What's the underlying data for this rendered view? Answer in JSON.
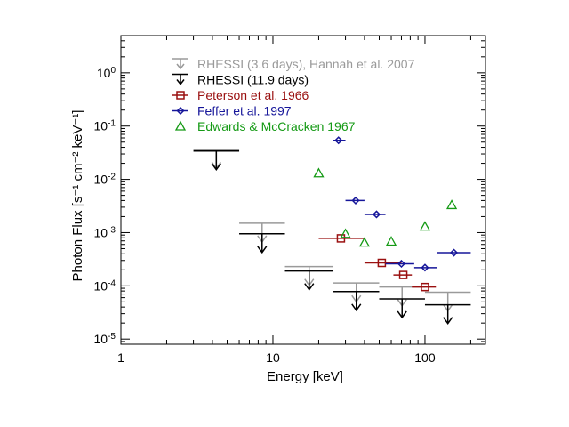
{
  "chart_data": {
    "type": "scatter",
    "xlabel": "Energy [keV]",
    "ylabel": "Photon Flux [s⁻¹ cm⁻² keV⁻¹]",
    "xscale": "log",
    "yscale": "log",
    "xlim": [
      1,
      250
    ],
    "ylim": [
      8e-06,
      5
    ],
    "xticks": [
      {
        "value": 1,
        "label": "1"
      },
      {
        "value": 10,
        "label": "10"
      },
      {
        "value": 100,
        "label": "100"
      }
    ],
    "yticks": [
      {
        "value": 1e-05,
        "base": "10",
        "exp": "-5"
      },
      {
        "value": 0.0001,
        "base": "10",
        "exp": "-4"
      },
      {
        "value": 0.001,
        "base": "10",
        "exp": "-3"
      },
      {
        "value": 0.01,
        "base": "10",
        "exp": "-2"
      },
      {
        "value": 0.1,
        "base": "10",
        "exp": "-1"
      },
      {
        "value": 1,
        "base": "10",
        "exp": "0"
      }
    ],
    "legend_position": "top-right",
    "series": [
      {
        "name": "RHESSI (3.6 days), Hannah et al. 2007",
        "marker": "upper-limit",
        "color": "#9a9a9a",
        "points": [
          {
            "x0": 3,
            "x1": 6,
            "y": 0.036
          },
          {
            "x0": 6,
            "x1": 12,
            "y": 0.0015
          },
          {
            "x0": 12,
            "x1": 25,
            "y": 0.00023
          },
          {
            "x0": 25,
            "x1": 50,
            "y": 0.000113
          },
          {
            "x0": 50,
            "x1": 100,
            "y": 9.5e-05
          },
          {
            "x0": 100,
            "x1": 200,
            "y": 7.6e-05
          }
        ]
      },
      {
        "name": "RHESSI (11.9 days)",
        "marker": "upper-limit",
        "color": "#000000",
        "points": [
          {
            "x0": 3,
            "x1": 6,
            "y": 0.034
          },
          {
            "x0": 6,
            "x1": 12,
            "y": 0.00095
          },
          {
            "x0": 12,
            "x1": 25,
            "y": 0.00019
          },
          {
            "x0": 25,
            "x1": 50,
            "y": 7.8e-05
          },
          {
            "x0": 50,
            "x1": 100,
            "y": 5.7e-05
          },
          {
            "x0": 100,
            "x1": 200,
            "y": 4.4e-05
          }
        ]
      },
      {
        "name": "Peterson et al. 1966",
        "marker": "square",
        "color": "#9a1010",
        "points": [
          {
            "x": 28,
            "x0": 20,
            "x1": 40,
            "y": 0.00078
          },
          {
            "x": 52,
            "x0": 40,
            "x1": 70,
            "y": 0.00027
          },
          {
            "x": 72,
            "x0": 62,
            "x1": 82,
            "y": 0.00016
          },
          {
            "x": 100,
            "x0": 82,
            "x1": 118,
            "y": 9.5e-05
          }
        ]
      },
      {
        "name": "Feffer et al. 1997",
        "marker": "diamond",
        "color": "#16169a",
        "points": [
          {
            "x": 27,
            "x0": 25,
            "x1": 30,
            "y": 0.054
          },
          {
            "x": 35,
            "x0": 30,
            "x1": 40,
            "y": 0.004
          },
          {
            "x": 48,
            "x0": 40,
            "x1": 55,
            "y": 0.0022
          },
          {
            "x": 70,
            "x0": 55,
            "x1": 85,
            "y": 0.00026
          },
          {
            "x": 100,
            "x0": 85,
            "x1": 120,
            "y": 0.00022
          },
          {
            "x": 155,
            "x0": 120,
            "x1": 200,
            "y": 0.00042
          }
        ]
      },
      {
        "name": "Edwards & McCracken 1967",
        "marker": "triangle",
        "color": "#159a15",
        "points": [
          {
            "x": 20,
            "y": 0.013
          },
          {
            "x": 30,
            "y": 0.00095
          },
          {
            "x": 40,
            "y": 0.00065
          },
          {
            "x": 60,
            "y": 0.00068
          },
          {
            "x": 100,
            "y": 0.0013
          },
          {
            "x": 150,
            "y": 0.0033
          }
        ]
      }
    ]
  }
}
